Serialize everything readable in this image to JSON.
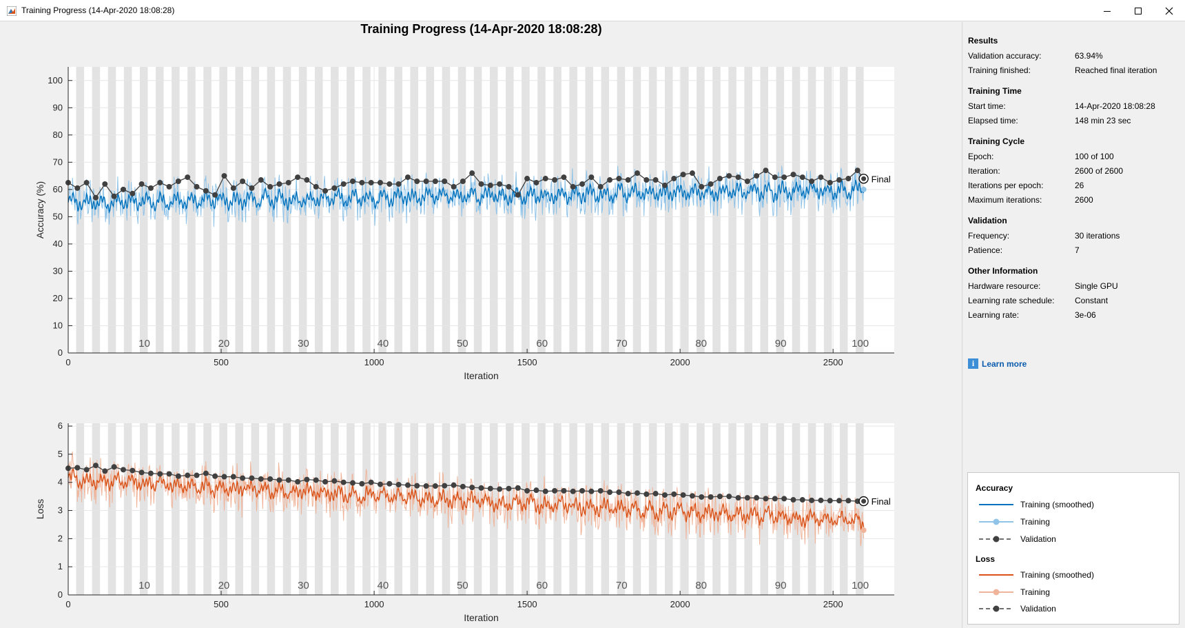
{
  "window": {
    "title": "Training Progress (14-Apr-2020 18:08:28)"
  },
  "plot_title": "Training Progress (14-Apr-2020 18:08:28)",
  "results": {
    "sections": [
      {
        "title": "Results",
        "rows": [
          {
            "key": "Validation accuracy:",
            "value": "63.94%"
          },
          {
            "key": "Training finished:",
            "value": "Reached final iteration"
          }
        ]
      },
      {
        "title": "Training Time",
        "rows": [
          {
            "key": "Start time:",
            "value": "14-Apr-2020 18:08:28"
          },
          {
            "key": "Elapsed time:",
            "value": "148 min 23 sec"
          }
        ]
      },
      {
        "title": "Training Cycle",
        "rows": [
          {
            "key": "Epoch:",
            "value": "100 of 100"
          },
          {
            "key": "Iteration:",
            "value": "2600 of 2600"
          },
          {
            "key": "Iterations per epoch:",
            "value": "26"
          },
          {
            "key": "Maximum iterations:",
            "value": "2600"
          }
        ]
      },
      {
        "title": "Validation",
        "rows": [
          {
            "key": "Frequency:",
            "value": "30 iterations"
          },
          {
            "key": "Patience:",
            "value": "7"
          }
        ]
      },
      {
        "title": "Other Information",
        "rows": [
          {
            "key": "Hardware resource:",
            "value": "Single GPU"
          },
          {
            "key": "Learning rate schedule:",
            "value": "Constant"
          },
          {
            "key": "Learning rate:",
            "value": "3e-06"
          }
        ]
      }
    ]
  },
  "learn_more": "Learn more",
  "legend": {
    "accuracy_title": "Accuracy",
    "loss_title": "Loss",
    "training_smoothed": "Training (smoothed)",
    "training": "Training",
    "validation": "Validation"
  },
  "colors": {
    "acc_smoothed": "#0072bd",
    "acc_raw": "#8fc3e8",
    "loss_smoothed": "#d95319",
    "loss_raw": "#f0b49a",
    "validation": "#404040",
    "epoch_band": "#e3e3e3"
  },
  "chart_data": [
    {
      "type": "line",
      "title": "Training Progress (14-Apr-2020 18:08:28)",
      "xlabel": "Iteration",
      "ylabel": "Accuracy (%)",
      "xlim": [
        0,
        2700
      ],
      "ylim": [
        0,
        105
      ],
      "x_ticks": [
        0,
        500,
        1000,
        1500,
        2000,
        2500
      ],
      "y_ticks": [
        0,
        10,
        20,
        30,
        40,
        50,
        60,
        70,
        80,
        90,
        100
      ],
      "epoch_labels": [
        10,
        20,
        30,
        40,
        50,
        60,
        70,
        80,
        90,
        100
      ],
      "final_label": "Final",
      "series": [
        {
          "name": "Training (smoothed)",
          "start": 55,
          "end": 60
        },
        {
          "name": "Training",
          "start": 55,
          "end": 60
        },
        {
          "name": "Validation",
          "final_value": 63.94,
          "x": [
            0,
            30,
            60,
            90,
            120,
            150,
            180,
            210,
            240,
            270,
            300,
            330,
            360,
            390,
            420,
            450,
            480,
            510,
            540,
            570,
            600,
            630,
            660,
            690,
            720,
            750,
            780,
            810,
            840,
            870,
            900,
            930,
            960,
            990,
            1020,
            1050,
            1080,
            1110,
            1140,
            1170,
            1200,
            1230,
            1260,
            1290,
            1320,
            1350,
            1380,
            1410,
            1440,
            1470,
            1500,
            1530,
            1560,
            1590,
            1620,
            1650,
            1680,
            1710,
            1740,
            1770,
            1800,
            1830,
            1860,
            1890,
            1920,
            1950,
            1980,
            2010,
            2040,
            2070,
            2100,
            2130,
            2160,
            2190,
            2220,
            2250,
            2280,
            2310,
            2340,
            2370,
            2400,
            2430,
            2460,
            2490,
            2520,
            2550,
            2580,
            2600
          ],
          "y": [
            62.5,
            60.5,
            62.5,
            57.0,
            62.0,
            57.5,
            60.0,
            58.5,
            62.0,
            60.5,
            62.5,
            61.0,
            63.0,
            64.5,
            61.0,
            59.5,
            58.0,
            65.0,
            60.5,
            63.0,
            60.5,
            63.5,
            61.0,
            62.0,
            62.5,
            64.5,
            63.5,
            61.0,
            59.5,
            60.5,
            62.0,
            63.0,
            62.5,
            62.5,
            62.5,
            62.0,
            62.0,
            64.5,
            63.0,
            63.0,
            63.0,
            63.0,
            61.0,
            63.0,
            66.0,
            62.0,
            61.5,
            62.0,
            61.0,
            58.0,
            64.0,
            62.5,
            64.0,
            63.5,
            64.5,
            61.0,
            62.0,
            64.5,
            61.0,
            63.5,
            64.0,
            63.5,
            66.0,
            63.5,
            63.5,
            61.5,
            64.0,
            65.5,
            66.0,
            61.0,
            62.0,
            64.0,
            65.0,
            64.5,
            63.0,
            65.0,
            67.0,
            64.5,
            64.5,
            65.5,
            64.5,
            63.0,
            64.5,
            62.5,
            63.5,
            64.0,
            67.0,
            63.94
          ]
        }
      ]
    },
    {
      "type": "line",
      "xlabel": "Iteration",
      "ylabel": "Loss",
      "xlim": [
        0,
        2700
      ],
      "ylim": [
        0,
        6.1
      ],
      "x_ticks": [
        0,
        500,
        1000,
        1500,
        2000,
        2500
      ],
      "y_ticks": [
        0,
        1,
        2,
        3,
        4,
        5,
        6
      ],
      "epoch_labels": [
        10,
        20,
        30,
        40,
        50,
        60,
        70,
        80,
        90,
        100
      ],
      "final_label": "Final",
      "series": [
        {
          "name": "Training (smoothed)",
          "start": 4.1,
          "end": 2.6
        },
        {
          "name": "Training",
          "start": 4.1,
          "end": 2.3
        },
        {
          "name": "Validation",
          "final_value": 3.33,
          "x": [
            0,
            30,
            60,
            90,
            120,
            150,
            180,
            210,
            240,
            270,
            300,
            330,
            360,
            390,
            420,
            450,
            480,
            510,
            540,
            570,
            600,
            630,
            660,
            690,
            720,
            750,
            780,
            810,
            840,
            870,
            900,
            930,
            960,
            990,
            1020,
            1050,
            1080,
            1110,
            1140,
            1170,
            1200,
            1230,
            1260,
            1290,
            1320,
            1350,
            1380,
            1410,
            1440,
            1470,
            1500,
            1530,
            1560,
            1590,
            1620,
            1650,
            1680,
            1710,
            1740,
            1770,
            1800,
            1830,
            1860,
            1890,
            1920,
            1950,
            1980,
            2010,
            2040,
            2070,
            2100,
            2130,
            2160,
            2190,
            2220,
            2250,
            2280,
            2310,
            2340,
            2370,
            2400,
            2430,
            2460,
            2490,
            2520,
            2550,
            2580,
            2600
          ],
          "y": [
            4.5,
            4.52,
            4.45,
            4.6,
            4.4,
            4.55,
            4.45,
            4.42,
            4.35,
            4.32,
            4.3,
            4.3,
            4.22,
            4.25,
            4.25,
            4.32,
            4.22,
            4.2,
            4.2,
            4.15,
            4.15,
            4.12,
            4.12,
            4.08,
            4.08,
            4.02,
            4.1,
            4.08,
            4.02,
            4.05,
            4.0,
            3.98,
            3.95,
            4.0,
            3.93,
            3.95,
            3.92,
            3.9,
            3.88,
            3.87,
            3.87,
            3.88,
            3.9,
            3.85,
            3.82,
            3.8,
            3.78,
            3.76,
            3.78,
            3.8,
            3.7,
            3.72,
            3.68,
            3.7,
            3.7,
            3.68,
            3.7,
            3.68,
            3.7,
            3.65,
            3.65,
            3.6,
            3.62,
            3.58,
            3.6,
            3.55,
            3.58,
            3.55,
            3.52,
            3.48,
            3.48,
            3.5,
            3.5,
            3.45,
            3.45,
            3.45,
            3.42,
            3.42,
            3.42,
            3.38,
            3.38,
            3.36,
            3.36,
            3.35,
            3.35,
            3.35,
            3.33,
            3.33
          ]
        }
      ]
    }
  ]
}
